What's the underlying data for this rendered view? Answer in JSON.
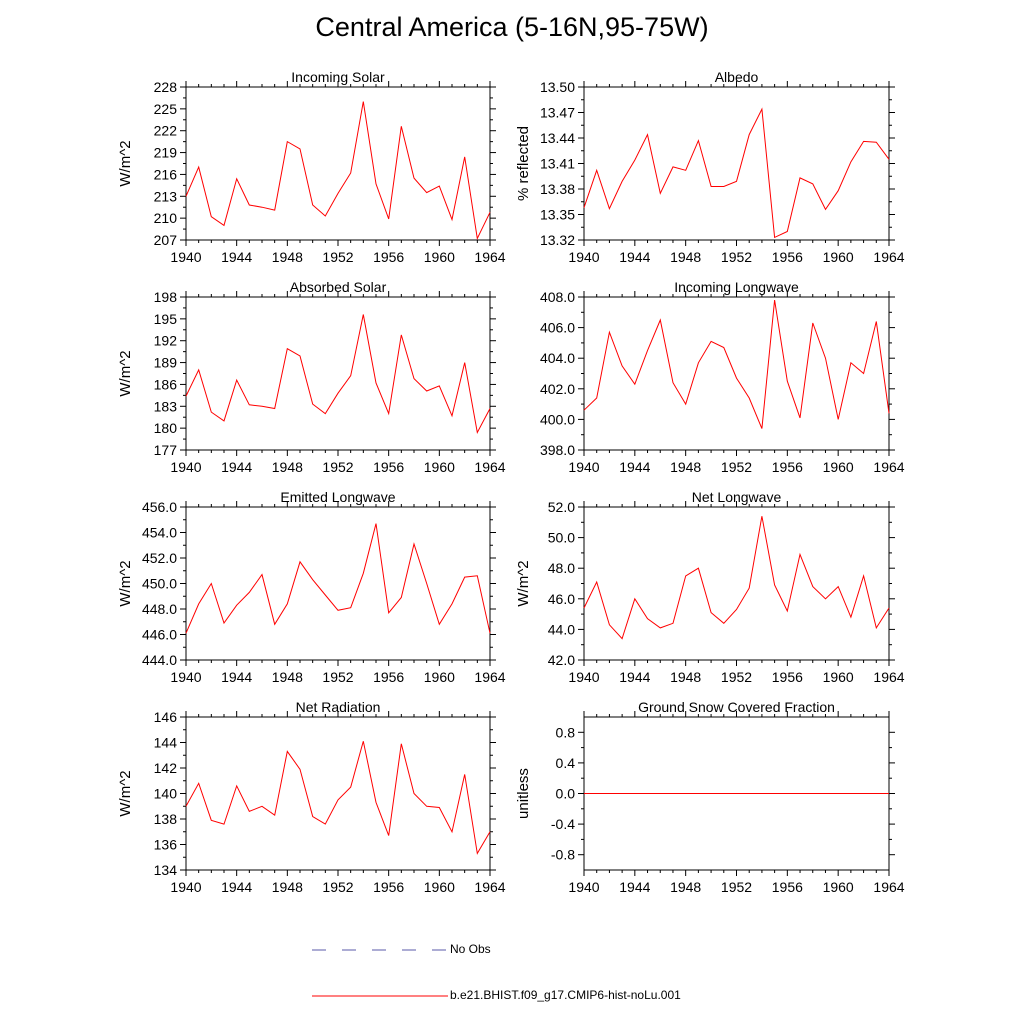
{
  "figure_title": "Central America (5-16N,95-75W)",
  "colors": {
    "model": "#ff0000",
    "obs": "#5a5aa8",
    "axis": "#000000"
  },
  "legend": {
    "obs_label": "No Obs",
    "model_label": "b.e21.BHIST.f09_g17.CMIP6-hist-noLu.001"
  },
  "chart_data": [
    {
      "type": "line",
      "title": "Incoming Solar",
      "ylabel": "W/m^2",
      "ylim": [
        207,
        228
      ],
      "yticks": [
        207,
        210,
        213,
        216,
        219,
        222,
        225,
        228
      ],
      "ytick_labels": [
        "207",
        "210",
        "213",
        "216",
        "219",
        "222",
        "225",
        "228"
      ],
      "xlim": [
        1940,
        1964
      ],
      "xticks": [
        1940,
        1944,
        1948,
        1952,
        1956,
        1960,
        1964
      ],
      "xtick_labels": [
        "1940",
        "1944",
        "1948",
        "1952",
        "1956",
        "1960",
        "1964"
      ],
      "x": [
        1940,
        1941,
        1942,
        1943,
        1944,
        1945,
        1946,
        1947,
        1948,
        1949,
        1950,
        1951,
        1952,
        1953,
        1954,
        1955,
        1956,
        1957,
        1958,
        1959,
        1960,
        1961,
        1962,
        1963,
        1964
      ],
      "series": [
        {
          "values": [
            213.0,
            217.0,
            210.2,
            209.0,
            215.4,
            211.8,
            211.5,
            211.1,
            220.5,
            219.5,
            211.8,
            210.3,
            213.4,
            216.2,
            226.0,
            214.7,
            209.9,
            222.6,
            215.5,
            213.5,
            214.4,
            209.8,
            218.4,
            207.2,
            210.8
          ]
        }
      ]
    },
    {
      "type": "line",
      "title": "Albedo",
      "ylabel": "% reflected",
      "ylim": [
        13.32,
        13.5
      ],
      "yticks": [
        13.32,
        13.35,
        13.38,
        13.41,
        13.44,
        13.47,
        13.5
      ],
      "ytick_labels": [
        "13.32",
        "13.35",
        "13.38",
        "13.41",
        "13.44",
        "13.47",
        "13.50"
      ],
      "xlim": [
        1940,
        1964
      ],
      "xticks": [
        1940,
        1944,
        1948,
        1952,
        1956,
        1960,
        1964
      ],
      "xtick_labels": [
        "1940",
        "1944",
        "1948",
        "1952",
        "1956",
        "1960",
        "1964"
      ],
      "x": [
        1940,
        1941,
        1942,
        1943,
        1944,
        1945,
        1946,
        1947,
        1948,
        1949,
        1950,
        1951,
        1952,
        1953,
        1954,
        1955,
        1956,
        1957,
        1958,
        1959,
        1960,
        1961,
        1962,
        1963,
        1964
      ],
      "series": [
        {
          "values": [
            13.358,
            13.402,
            13.357,
            13.389,
            13.414,
            13.444,
            13.375,
            13.406,
            13.402,
            13.437,
            13.383,
            13.383,
            13.389,
            13.444,
            13.474,
            13.323,
            13.33,
            13.393,
            13.386,
            13.356,
            13.378,
            13.412,
            13.436,
            13.435,
            13.415
          ]
        }
      ]
    },
    {
      "type": "line",
      "title": "Absorbed Solar",
      "ylabel": "W/m^2",
      "ylim": [
        177,
        198
      ],
      "yticks": [
        177,
        180,
        183,
        186,
        189,
        192,
        195,
        198
      ],
      "ytick_labels": [
        "177",
        "180",
        "183",
        "186",
        "189",
        "192",
        "195",
        "198"
      ],
      "xlim": [
        1940,
        1964
      ],
      "xticks": [
        1940,
        1944,
        1948,
        1952,
        1956,
        1960,
        1964
      ],
      "xtick_labels": [
        "1940",
        "1944",
        "1948",
        "1952",
        "1956",
        "1960",
        "1964"
      ],
      "x": [
        1940,
        1941,
        1942,
        1943,
        1944,
        1945,
        1946,
        1947,
        1948,
        1949,
        1950,
        1951,
        1952,
        1953,
        1954,
        1955,
        1956,
        1957,
        1958,
        1959,
        1960,
        1961,
        1962,
        1963,
        1964
      ],
      "series": [
        {
          "values": [
            184.4,
            188.0,
            182.2,
            181.0,
            186.6,
            183.2,
            183.0,
            182.7,
            190.9,
            189.9,
            183.3,
            182.0,
            184.8,
            187.2,
            195.6,
            186.2,
            182.0,
            192.8,
            186.8,
            185.1,
            185.8,
            181.7,
            189.0,
            179.4,
            182.7
          ]
        }
      ]
    },
    {
      "type": "line",
      "title": "Incoming Longwave",
      "ylabel": "",
      "ylim": [
        398.0,
        408.0
      ],
      "yticks": [
        398.0,
        400.0,
        402.0,
        404.0,
        406.0,
        408.0
      ],
      "ytick_labels": [
        "398.0",
        "400.0",
        "402.0",
        "404.0",
        "406.0",
        "408.0"
      ],
      "xlim": [
        1940,
        1964
      ],
      "xticks": [
        1940,
        1944,
        1948,
        1952,
        1956,
        1960,
        1964
      ],
      "xtick_labels": [
        "1940",
        "1944",
        "1948",
        "1952",
        "1956",
        "1960",
        "1964"
      ],
      "x": [
        1940,
        1941,
        1942,
        1943,
        1944,
        1945,
        1946,
        1947,
        1948,
        1949,
        1950,
        1951,
        1952,
        1953,
        1954,
        1955,
        1956,
        1957,
        1958,
        1959,
        1960,
        1961,
        1962,
        1963,
        1964
      ],
      "series": [
        {
          "values": [
            400.6,
            401.4,
            405.7,
            403.5,
            402.3,
            404.5,
            406.5,
            402.4,
            401.0,
            403.7,
            405.1,
            404.7,
            402.7,
            401.4,
            399.4,
            407.8,
            402.5,
            400.1,
            406.3,
            404.0,
            400.0,
            403.7,
            403.0,
            406.4,
            400.4
          ]
        }
      ]
    },
    {
      "type": "line",
      "title": "Emitted Longwave",
      "ylabel": "W/m^2",
      "ylim": [
        444.0,
        456.0
      ],
      "yticks": [
        444.0,
        446.0,
        448.0,
        450.0,
        452.0,
        454.0,
        456.0
      ],
      "ytick_labels": [
        "444.0",
        "446.0",
        "448.0",
        "450.0",
        "452.0",
        "454.0",
        "456.0"
      ],
      "xlim": [
        1940,
        1964
      ],
      "xticks": [
        1940,
        1944,
        1948,
        1952,
        1956,
        1960,
        1964
      ],
      "xtick_labels": [
        "1940",
        "1944",
        "1948",
        "1952",
        "1956",
        "1960",
        "1964"
      ],
      "x": [
        1940,
        1941,
        1942,
        1943,
        1944,
        1945,
        1946,
        1947,
        1948,
        1949,
        1950,
        1951,
        1952,
        1953,
        1954,
        1955,
        1956,
        1957,
        1958,
        1959,
        1960,
        1961,
        1962,
        1963,
        1964
      ],
      "series": [
        {
          "values": [
            446.1,
            448.4,
            450.0,
            446.9,
            448.3,
            449.3,
            450.7,
            446.8,
            448.4,
            451.7,
            450.3,
            449.1,
            447.9,
            448.1,
            450.8,
            454.7,
            447.7,
            448.9,
            453.1,
            450.0,
            446.8,
            448.4,
            450.5,
            450.6,
            446.1
          ]
        }
      ]
    },
    {
      "type": "line",
      "title": "Net Longwave",
      "ylabel": "W/m^2",
      "ylim": [
        42.0,
        52.0
      ],
      "yticks": [
        42.0,
        44.0,
        46.0,
        48.0,
        50.0,
        52.0
      ],
      "ytick_labels": [
        "42.0",
        "44.0",
        "46.0",
        "48.0",
        "50.0",
        "52.0"
      ],
      "xlim": [
        1940,
        1964
      ],
      "xticks": [
        1940,
        1944,
        1948,
        1952,
        1956,
        1960,
        1964
      ],
      "xtick_labels": [
        "1940",
        "1944",
        "1948",
        "1952",
        "1956",
        "1960",
        "1964"
      ],
      "x": [
        1940,
        1941,
        1942,
        1943,
        1944,
        1945,
        1946,
        1947,
        1948,
        1949,
        1950,
        1951,
        1952,
        1953,
        1954,
        1955,
        1956,
        1957,
        1958,
        1959,
        1960,
        1961,
        1962,
        1963,
        1964
      ],
      "series": [
        {
          "values": [
            45.4,
            47.1,
            44.3,
            43.4,
            46.0,
            44.7,
            44.1,
            44.4,
            47.5,
            48.0,
            45.1,
            44.4,
            45.3,
            46.7,
            51.4,
            46.9,
            45.2,
            48.9,
            46.8,
            46.0,
            46.8,
            44.8,
            47.5,
            44.1,
            45.4
          ]
        }
      ]
    },
    {
      "type": "line",
      "title": "Net Radiation",
      "ylabel": "W/m^2",
      "ylim": [
        134,
        146
      ],
      "yticks": [
        134,
        136,
        138,
        140,
        142,
        144,
        146
      ],
      "ytick_labels": [
        "134",
        "136",
        "138",
        "140",
        "142",
        "144",
        "146"
      ],
      "xlim": [
        1940,
        1964
      ],
      "xticks": [
        1940,
        1944,
        1948,
        1952,
        1956,
        1960,
        1964
      ],
      "xtick_labels": [
        "1940",
        "1944",
        "1948",
        "1952",
        "1956",
        "1960",
        "1964"
      ],
      "x": [
        1940,
        1941,
        1942,
        1943,
        1944,
        1945,
        1946,
        1947,
        1948,
        1949,
        1950,
        1951,
        1952,
        1953,
        1954,
        1955,
        1956,
        1957,
        1958,
        1959,
        1960,
        1961,
        1962,
        1963,
        1964
      ],
      "series": [
        {
          "values": [
            139.0,
            140.8,
            137.9,
            137.6,
            140.6,
            138.6,
            139.0,
            138.3,
            143.3,
            141.9,
            138.2,
            137.6,
            139.5,
            140.5,
            144.1,
            139.3,
            136.7,
            143.9,
            140.0,
            139.0,
            138.9,
            137.0,
            141.5,
            135.3,
            137.0
          ]
        }
      ]
    },
    {
      "type": "line",
      "title": "Ground Snow Covered Fraction",
      "ylabel": "unitless",
      "ylim": [
        -1.0,
        1.0
      ],
      "yticks": [
        -0.8,
        -0.4,
        0.0,
        0.4,
        0.8
      ],
      "ytick_labels": [
        "-0.8",
        "-0.4",
        "0.0",
        "0.4",
        "0.8"
      ],
      "xlim": [
        1940,
        1964
      ],
      "xticks": [
        1940,
        1944,
        1948,
        1952,
        1956,
        1960,
        1964
      ],
      "xtick_labels": [
        "1940",
        "1944",
        "1948",
        "1952",
        "1956",
        "1960",
        "1964"
      ],
      "x": [
        1940,
        1941,
        1942,
        1943,
        1944,
        1945,
        1946,
        1947,
        1948,
        1949,
        1950,
        1951,
        1952,
        1953,
        1954,
        1955,
        1956,
        1957,
        1958,
        1959,
        1960,
        1961,
        1962,
        1963,
        1964
      ],
      "series": [
        {
          "values": [
            0,
            0,
            0,
            0,
            0,
            0,
            0,
            0,
            0,
            0,
            0,
            0,
            0,
            0,
            0,
            0,
            0,
            0,
            0,
            0,
            0,
            0,
            0,
            0,
            0
          ]
        }
      ]
    }
  ]
}
